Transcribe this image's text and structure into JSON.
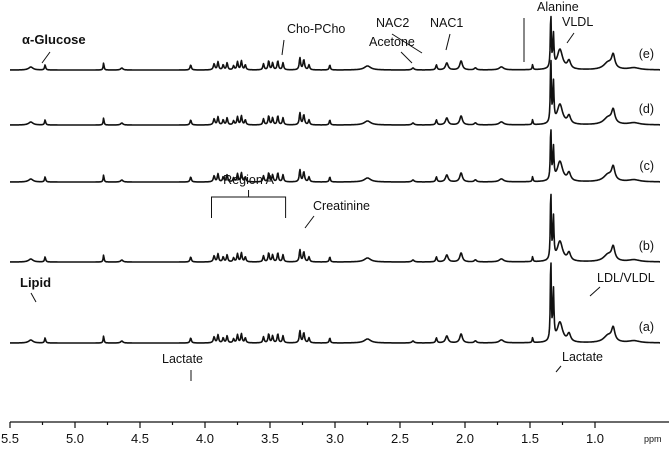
{
  "chart_data": {
    "type": "line",
    "xlabel": "ppm",
    "xlim": [
      5.5,
      0.5
    ],
    "x_reversed": true,
    "ticks": [
      "5.5",
      "5.0",
      "4.5",
      "4.0",
      "3.5",
      "3.0",
      "2.5",
      "2.0",
      "1.5",
      "1.0"
    ],
    "tick_values": [
      5.5,
      5.0,
      4.5,
      4.0,
      3.5,
      3.0,
      2.5,
      2.0,
      1.5,
      1.0
    ],
    "grid": false,
    "series": [
      {
        "name": "(e)",
        "peak_scale": 0.82
      },
      {
        "name": "(d)",
        "peak_scale": 1.0
      },
      {
        "name": "(c)",
        "peak_scale": 0.8
      },
      {
        "name": "(b)",
        "peak_scale": 1.05
      },
      {
        "name": "(a)",
        "peak_scale": 1.25
      }
    ],
    "annotations": [
      {
        "text": "α-Glucose",
        "ppm": 5.23,
        "series": "(e)",
        "bold": true
      },
      {
        "text": "Cho-PCho",
        "ppm": 3.21,
        "series": "(e)"
      },
      {
        "text": "Acetone",
        "ppm": 2.22,
        "series": "(e)"
      },
      {
        "text": "NAC2",
        "ppm": 2.14,
        "series": "(e)"
      },
      {
        "text": "NAC1",
        "ppm": 2.03,
        "series": "(e)"
      },
      {
        "text": "Alanine",
        "ppm": 1.48,
        "series": "(e)"
      },
      {
        "text": "VLDL",
        "ppm": 1.28,
        "series": "(e)"
      },
      {
        "text": "Region A",
        "ppm_range": [
          3.95,
          3.38
        ],
        "series": "(c)"
      },
      {
        "text": "Creatinine",
        "ppm": 3.04,
        "series": "(c)"
      },
      {
        "text": "Lipid",
        "ppm": 5.32,
        "series": "(b)",
        "bold": true
      },
      {
        "text": "LDL/VLDL",
        "ppm": 0.86,
        "series": "(b)"
      },
      {
        "text": "Lactate",
        "ppm": 4.11,
        "series": "(a)"
      },
      {
        "text": "Lactate",
        "ppm": 1.33,
        "series": "(a)"
      }
    ]
  }
}
